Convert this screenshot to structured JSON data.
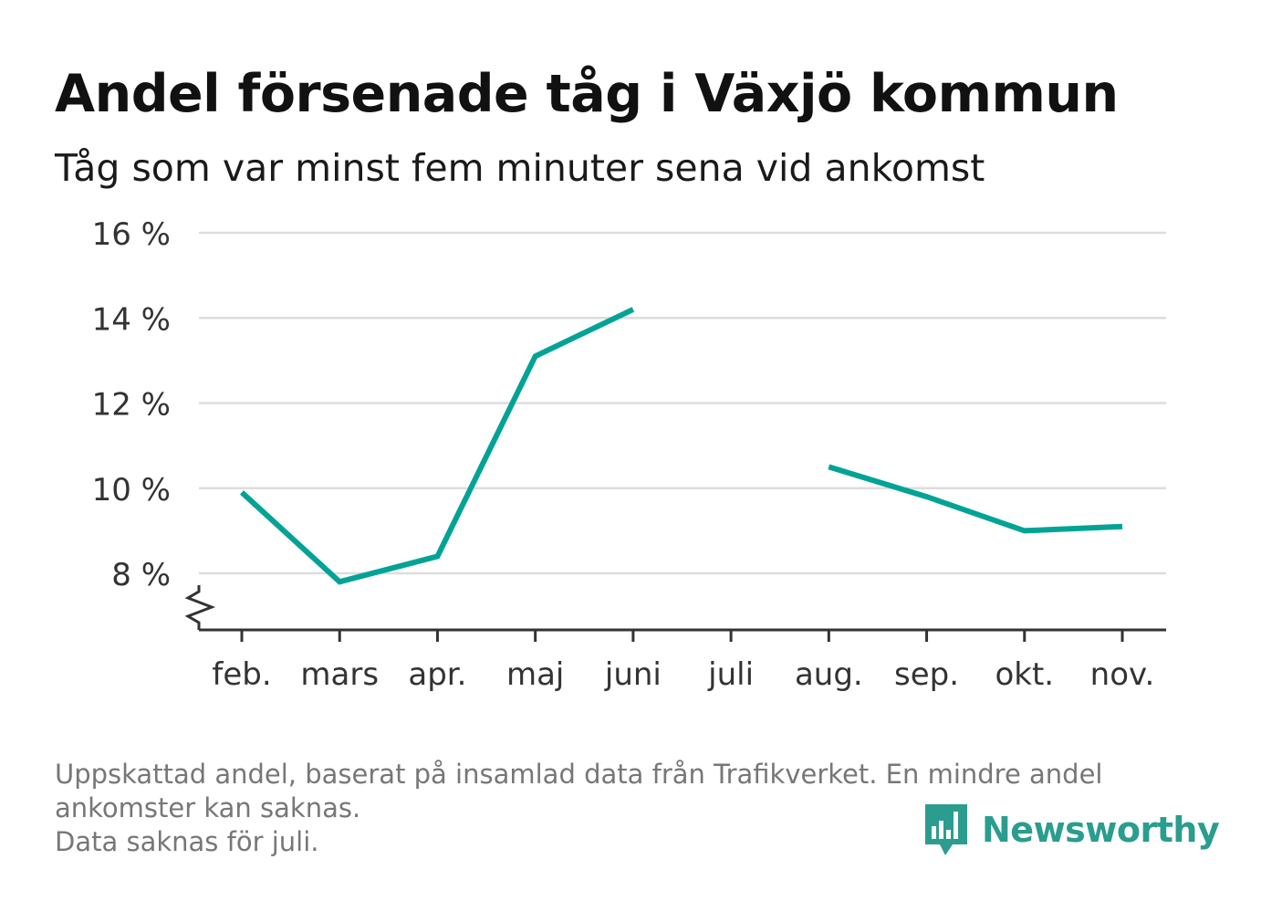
{
  "title": "Andel försenade tåg i Växjö kommun",
  "subtitle": "Tåg som var minst fem minuter sena vid ankomst",
  "footer": {
    "line1": "Uppskattad andel, baserat på insamlad data från Trafikverket. En mindre andel",
    "line2": "ankomster kan saknas.",
    "line3": "Data saknas för juli."
  },
  "brand": {
    "name": "Newsworthy",
    "icon": "bar-chart-speech-bubble-icon",
    "color": "#2a9d8f"
  },
  "colors": {
    "line": "#00a396",
    "grid": "#dddddd",
    "axis": "#333333"
  },
  "chart_data": {
    "type": "line",
    "categories": [
      "feb.",
      "mars",
      "apr.",
      "maj",
      "juni",
      "juli",
      "aug.",
      "sep.",
      "okt.",
      "nov."
    ],
    "series": [
      {
        "name": "",
        "values": [
          9.9,
          7.8,
          8.4,
          13.1,
          14.2,
          null,
          10.5,
          9.8,
          9.0,
          9.1
        ]
      }
    ],
    "ylim": [
      6.7,
      16
    ],
    "yticks": [
      8,
      10,
      12,
      14,
      16
    ],
    "ytick_labels": [
      "8 %",
      "10 %",
      "12 %",
      "14 %",
      "16 %"
    ],
    "axis_break": true,
    "grid": true,
    "legend": "none"
  }
}
